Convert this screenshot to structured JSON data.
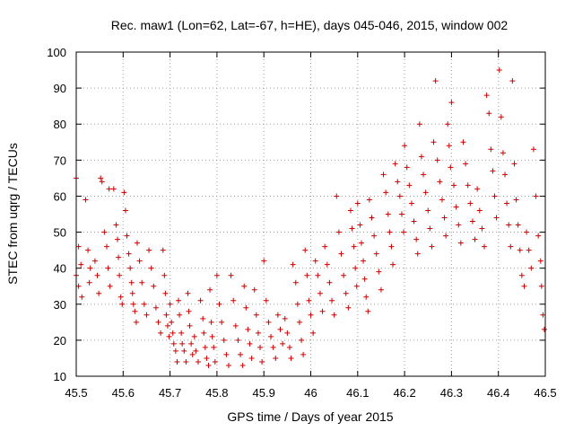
{
  "chart_data": {
    "type": "scatter",
    "title": "Rec. maw1 (Lon=62, Lat=-67, h=HE), days 045-046, 2015, window 002",
    "xlabel": "GPS time / Days of year 2015",
    "ylabel": "STEC from uqrg / TECUs",
    "xlim": [
      45.5,
      46.5
    ],
    "ylim": [
      10,
      100
    ],
    "xticks": [
      45.5,
      45.6,
      45.7,
      45.8,
      45.9,
      46,
      46.1,
      46.2,
      46.3,
      46.4,
      46.5
    ],
    "xtick_labels": [
      "45.5",
      "45.6",
      "45.7",
      "45.8",
      "45.9",
      "46",
      "46.1",
      "46.2",
      "46.3",
      "46.4",
      "46.5"
    ],
    "yticks": [
      10,
      20,
      30,
      40,
      50,
      60,
      70,
      80,
      90,
      100
    ],
    "ytick_labels": [
      "10",
      "20",
      "30",
      "40",
      "50",
      "60",
      "70",
      "80",
      "90",
      "100"
    ],
    "grid": true,
    "marker": "plus",
    "color": "#cc0000",
    "series": [
      {
        "points": [
          [
            45.5,
            65
          ],
          [
            45.505,
            46
          ],
          [
            45.51,
            41
          ],
          [
            45.5,
            38
          ],
          [
            45.505,
            35
          ],
          [
            45.512,
            32
          ],
          [
            45.52,
            59
          ],
          [
            45.525,
            45
          ],
          [
            45.53,
            40
          ],
          [
            45.528,
            36
          ],
          [
            45.54,
            42
          ],
          [
            45.545,
            38
          ],
          [
            45.548,
            33
          ],
          [
            45.552,
            65
          ],
          [
            45.555,
            64
          ],
          [
            45.56,
            50
          ],
          [
            45.565,
            46
          ],
          [
            45.568,
            40
          ],
          [
            45.572,
            35
          ],
          [
            45.57,
            62
          ],
          [
            45.58,
            62
          ],
          [
            45.585,
            52
          ],
          [
            45.588,
            48
          ],
          [
            45.59,
            43
          ],
          [
            45.592,
            38
          ],
          [
            45.595,
            32
          ],
          [
            45.598,
            30
          ],
          [
            45.602,
            61
          ],
          [
            45.605,
            56
          ],
          [
            45.608,
            49
          ],
          [
            45.612,
            44
          ],
          [
            45.615,
            40
          ],
          [
            45.618,
            36
          ],
          [
            45.62,
            33
          ],
          [
            45.622,
            30
          ],
          [
            45.625,
            28
          ],
          [
            45.628,
            25
          ],
          [
            45.63,
            47
          ],
          [
            45.635,
            42
          ],
          [
            45.64,
            36
          ],
          [
            45.645,
            30
          ],
          [
            45.65,
            27
          ],
          [
            45.655,
            45
          ],
          [
            45.66,
            40
          ],
          [
            45.665,
            35
          ],
          [
            45.67,
            29
          ],
          [
            45.675,
            25
          ],
          [
            45.68,
            22
          ],
          [
            45.685,
            45
          ],
          [
            45.688,
            38
          ],
          [
            45.69,
            33
          ],
          [
            45.692,
            27
          ],
          [
            45.695,
            24
          ],
          [
            45.698,
            21
          ],
          [
            45.7,
            30
          ],
          [
            45.703,
            25
          ],
          [
            45.706,
            22
          ],
          [
            45.708,
            19
          ],
          [
            45.712,
            17
          ],
          [
            45.715,
            14
          ],
          [
            45.718,
            31
          ],
          [
            45.72,
            27
          ],
          [
            45.724,
            22
          ],
          [
            45.726,
            19
          ],
          [
            45.73,
            17
          ],
          [
            45.734,
            14
          ],
          [
            45.738,
            33
          ],
          [
            45.74,
            28
          ],
          [
            45.742,
            24
          ],
          [
            45.745,
            19
          ],
          [
            45.748,
            16
          ],
          [
            45.752,
            21
          ],
          [
            45.755,
            17
          ],
          [
            45.76,
            14
          ],
          [
            45.765,
            31
          ],
          [
            45.77,
            26
          ],
          [
            45.772,
            22
          ],
          [
            45.775,
            18
          ],
          [
            45.778,
            15
          ],
          [
            45.782,
            13
          ],
          [
            45.785,
            34
          ],
          [
            45.788,
            25
          ],
          [
            45.79,
            21
          ],
          [
            45.793,
            18
          ],
          [
            45.796,
            14
          ],
          [
            45.8,
            38
          ],
          [
            45.805,
            30
          ],
          [
            45.81,
            25
          ],
          [
            45.815,
            20
          ],
          [
            45.82,
            16
          ],
          [
            45.825,
            13
          ],
          [
            45.83,
            38
          ],
          [
            45.835,
            31
          ],
          [
            45.84,
            24
          ],
          [
            45.845,
            20
          ],
          [
            45.85,
            16
          ],
          [
            45.855,
            13
          ],
          [
            45.858,
            35
          ],
          [
            45.862,
            29
          ],
          [
            45.866,
            23
          ],
          [
            45.87,
            19
          ],
          [
            45.874,
            15
          ],
          [
            45.88,
            34
          ],
          [
            45.884,
            27
          ],
          [
            45.888,
            22
          ],
          [
            45.892,
            18
          ],
          [
            45.896,
            14
          ],
          [
            45.9,
            42
          ],
          [
            45.905,
            31
          ],
          [
            45.91,
            25
          ],
          [
            45.915,
            21
          ],
          [
            45.92,
            18
          ],
          [
            45.925,
            15
          ],
          [
            45.93,
            27
          ],
          [
            45.935,
            23
          ],
          [
            45.94,
            19
          ],
          [
            45.945,
            26
          ],
          [
            45.95,
            22
          ],
          [
            45.955,
            18
          ],
          [
            45.958,
            15
          ],
          [
            45.962,
            41
          ],
          [
            45.968,
            36
          ],
          [
            45.972,
            30
          ],
          [
            45.976,
            25
          ],
          [
            45.98,
            20
          ],
          [
            45.984,
            16
          ],
          [
            45.988,
            45
          ],
          [
            45.992,
            38
          ],
          [
            45.996,
            31
          ],
          [
            46.0,
            27
          ],
          [
            46.005,
            22
          ],
          [
            46.01,
            42
          ],
          [
            46.015,
            38
          ],
          [
            46.02,
            33
          ],
          [
            46.025,
            28
          ],
          [
            46.03,
            46
          ],
          [
            46.035,
            41
          ],
          [
            46.04,
            36
          ],
          [
            46.045,
            31
          ],
          [
            46.05,
            27
          ],
          [
            46.055,
            60
          ],
          [
            46.06,
            50
          ],
          [
            46.065,
            44
          ],
          [
            46.07,
            38
          ],
          [
            46.075,
            33
          ],
          [
            46.08,
            29
          ],
          [
            46.085,
            56
          ],
          [
            46.088,
            51
          ],
          [
            46.092,
            46
          ],
          [
            46.095,
            40
          ],
          [
            46.098,
            35
          ],
          [
            46.1,
            58
          ],
          [
            46.105,
            52
          ],
          [
            46.108,
            47
          ],
          [
            46.112,
            42
          ],
          [
            46.115,
            37
          ],
          [
            46.118,
            32
          ],
          [
            46.122,
            28
          ],
          [
            46.125,
            59
          ],
          [
            46.13,
            54
          ],
          [
            46.135,
            49
          ],
          [
            46.14,
            44
          ],
          [
            46.145,
            39
          ],
          [
            46.15,
            34
          ],
          [
            46.155,
            66
          ],
          [
            46.16,
            61
          ],
          [
            46.165,
            55
          ],
          [
            46.168,
            50
          ],
          [
            46.172,
            46
          ],
          [
            46.175,
            41
          ],
          [
            46.18,
            69
          ],
          [
            46.185,
            64
          ],
          [
            46.19,
            60
          ],
          [
            46.194,
            55
          ],
          [
            46.198,
            50
          ],
          [
            46.2,
            74
          ],
          [
            46.205,
            68
          ],
          [
            46.21,
            63
          ],
          [
            46.215,
            58
          ],
          [
            46.22,
            53
          ],
          [
            46.225,
            48
          ],
          [
            46.228,
            44
          ],
          [
            46.232,
            80
          ],
          [
            46.236,
            71
          ],
          [
            46.24,
            66
          ],
          [
            46.245,
            61
          ],
          [
            46.25,
            56
          ],
          [
            46.254,
            51
          ],
          [
            46.258,
            46
          ],
          [
            46.262,
            75
          ],
          [
            46.266,
            92
          ],
          [
            46.27,
            70
          ],
          [
            46.275,
            64
          ],
          [
            46.28,
            59
          ],
          [
            46.285,
            54
          ],
          [
            46.288,
            49
          ],
          [
            46.292,
            80
          ],
          [
            46.295,
            74
          ],
          [
            46.298,
            68
          ],
          [
            46.3,
            86
          ],
          [
            46.305,
            63
          ],
          [
            46.31,
            57
          ],
          [
            46.315,
            52
          ],
          [
            46.32,
            47
          ],
          [
            46.325,
            75
          ],
          [
            46.33,
            69
          ],
          [
            46.335,
            63
          ],
          [
            46.34,
            58
          ],
          [
            46.345,
            53
          ],
          [
            46.35,
            48
          ],
          [
            46.355,
            62
          ],
          [
            46.36,
            56
          ],
          [
            46.365,
            51
          ],
          [
            46.37,
            46
          ],
          [
            46.375,
            88
          ],
          [
            46.38,
            83
          ],
          [
            46.384,
            73
          ],
          [
            46.388,
            67
          ],
          [
            46.392,
            60
          ],
          [
            46.396,
            54
          ],
          [
            46.4,
            100
          ],
          [
            46.402,
            95
          ],
          [
            46.406,
            82
          ],
          [
            46.41,
            72
          ],
          [
            46.414,
            66
          ],
          [
            46.418,
            58
          ],
          [
            46.422,
            52
          ],
          [
            46.426,
            46
          ],
          [
            46.43,
            92
          ],
          [
            46.434,
            69
          ],
          [
            46.438,
            59
          ],
          [
            46.442,
            52
          ],
          [
            46.446,
            45
          ],
          [
            46.45,
            38
          ],
          [
            46.455,
            35
          ],
          [
            46.46,
            50
          ],
          [
            46.465,
            45
          ],
          [
            46.47,
            40
          ],
          [
            46.475,
            73
          ],
          [
            46.48,
            60
          ],
          [
            46.485,
            49
          ],
          [
            46.49,
            42
          ],
          [
            46.492,
            35
          ],
          [
            46.495,
            27
          ],
          [
            46.498,
            23
          ]
        ]
      }
    ]
  }
}
